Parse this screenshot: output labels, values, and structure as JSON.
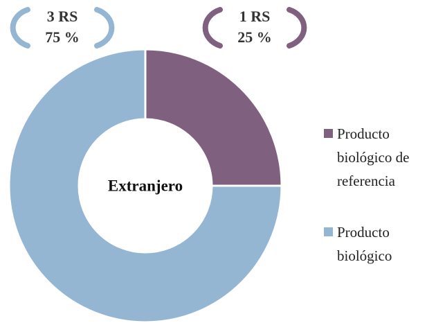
{
  "chart_data": {
    "type": "donut",
    "title": "Extranjero",
    "categories": [
      "Producto biológico de referencia",
      "Producto biológico"
    ],
    "values": [
      25,
      75
    ],
    "value_labels": [
      "25 %",
      "75 %"
    ],
    "counts": [
      1,
      3
    ],
    "count_labels": [
      "1 RS",
      "3 RS"
    ],
    "colors": [
      "#80607f",
      "#95b6d2"
    ],
    "legend": "right"
  }
}
